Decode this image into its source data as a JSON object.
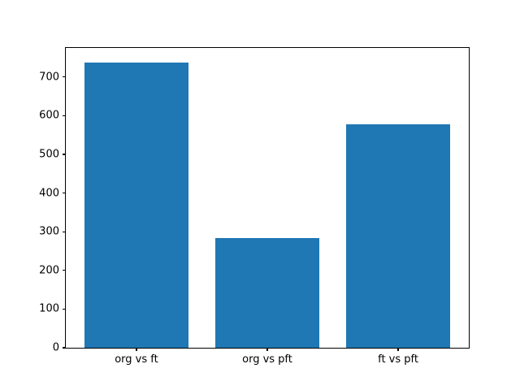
{
  "chart_data": {
    "type": "bar",
    "categories": [
      "org vs ft",
      "org vs pft",
      "ft vs pft"
    ],
    "values": [
      738,
      284,
      577
    ],
    "title": "",
    "xlabel": "",
    "ylabel": "",
    "ylim": [
      0,
      775
    ],
    "yticks": [
      0,
      100,
      200,
      300,
      400,
      500,
      600,
      700
    ],
    "bar_color": "#1f77b4",
    "axis_color": "#000000",
    "background_color": "#ffffff",
    "grid": false,
    "legend": false
  }
}
